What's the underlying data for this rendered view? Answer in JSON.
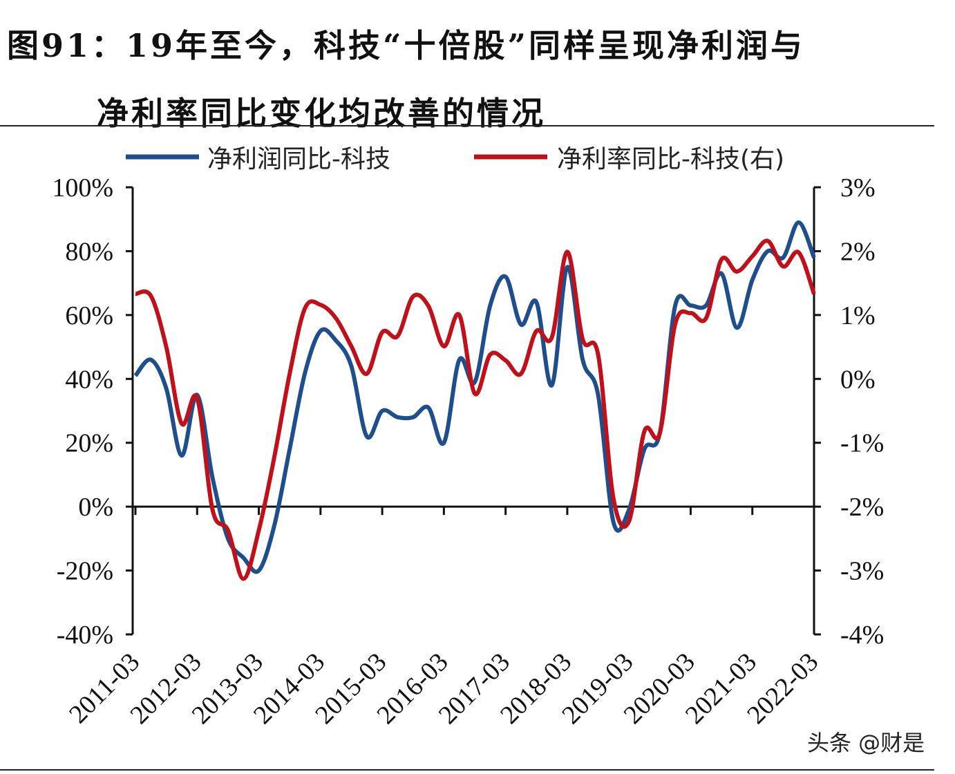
{
  "title_line1": "图91：19年至今，科技“十倍股”同样呈现净利润与",
  "title_line2": "净利率同比变化均改善的情况",
  "watermark": "头条 @财是",
  "chart_data": {
    "type": "line",
    "x": [
      "2011-03",
      "2011-06",
      "2011-09",
      "2011-12",
      "2012-03",
      "2012-06",
      "2012-09",
      "2012-12",
      "2013-03",
      "2013-06",
      "2013-09",
      "2013-12",
      "2014-03",
      "2014-06",
      "2014-09",
      "2014-12",
      "2015-03",
      "2015-06",
      "2015-09",
      "2015-12",
      "2016-03",
      "2016-06",
      "2016-09",
      "2016-12",
      "2017-03",
      "2017-06",
      "2017-09",
      "2017-12",
      "2018-03",
      "2018-06",
      "2018-09",
      "2018-12",
      "2019-03",
      "2019-06",
      "2019-09",
      "2019-12",
      "2020-03",
      "2020-06",
      "2020-09",
      "2020-12",
      "2021-03",
      "2021-06",
      "2021-09",
      "2021-12",
      "2022-03"
    ],
    "x_tick_labels": [
      "2011-03",
      "2012-03",
      "2013-03",
      "2014-03",
      "2015-03",
      "2016-03",
      "2017-03",
      "2018-03",
      "2019-03",
      "2020-03",
      "2021-03",
      "2022-03"
    ],
    "series": [
      {
        "name": "净利润同比-科技",
        "axis": "left",
        "color": "#1f4e8c",
        "values": [
          41,
          46,
          37,
          16,
          35,
          9,
          -10,
          -16,
          -20,
          -6,
          18,
          42,
          55,
          52,
          44,
          22,
          30,
          28,
          28,
          31,
          20,
          46,
          39,
          63,
          72,
          57,
          64,
          38,
          75,
          46,
          35,
          -5,
          -1,
          18,
          23,
          63,
          63,
          63,
          73,
          56,
          71,
          80,
          78,
          89,
          78
        ]
      },
      {
        "name": "净利率同比-科技(右)",
        "axis": "right",
        "color": "#c0101a",
        "values": [
          1.33,
          1.3,
          0.5,
          -0.7,
          -0.3,
          -2.05,
          -2.37,
          -3.13,
          -2.37,
          -1.23,
          0.08,
          1.11,
          1.16,
          0.95,
          0.51,
          0.08,
          0.73,
          0.67,
          1.29,
          1.14,
          0.51,
          1.0,
          -0.23,
          0.38,
          0.29,
          0.08,
          0.75,
          0.65,
          1.99,
          0.62,
          0.38,
          -1.88,
          -2.23,
          -0.82,
          -0.85,
          0.86,
          1.03,
          0.95,
          1.87,
          1.68,
          1.92,
          2.16,
          1.76,
          1.98,
          1.33
        ]
      }
    ],
    "y_left": {
      "ylim": [
        -40,
        100
      ],
      "ticks": [
        "100%",
        "80%",
        "60%",
        "40%",
        "20%",
        "0%",
        "-20%",
        "-40%"
      ]
    },
    "y_right": {
      "ylim": [
        -4,
        3
      ],
      "ticks": [
        "3%",
        "2%",
        "1%",
        "0%",
        "-1%",
        "-2%",
        "-3%",
        "-4%"
      ]
    },
    "grid": false,
    "legend_position": "top"
  }
}
